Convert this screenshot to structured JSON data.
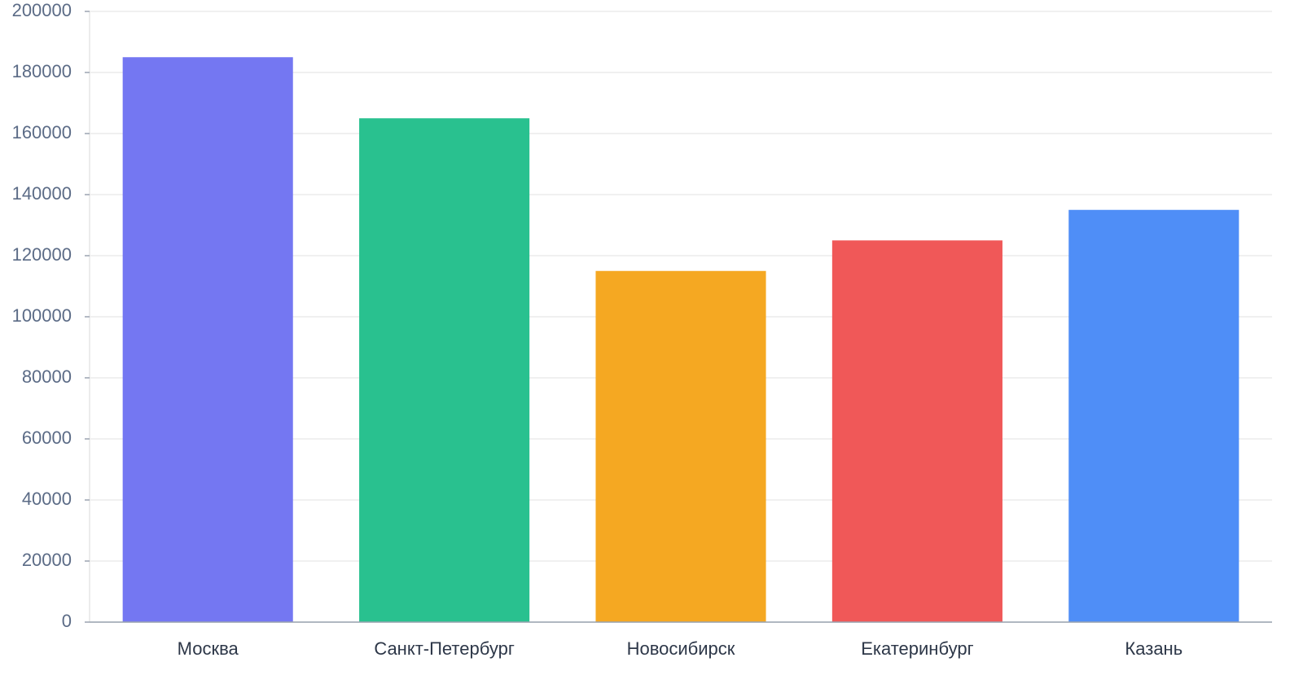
{
  "chart_data": {
    "type": "bar",
    "categories": [
      "Москва",
      "Санкт-Петербург",
      "Новосибирск",
      "Екатеринбург",
      "Казань"
    ],
    "values": [
      185000,
      165000,
      115000,
      125000,
      135000
    ],
    "colors": [
      "#7477f2",
      "#29c18f",
      "#f5a822",
      "#f05858",
      "#4f8ef7"
    ],
    "ylim": [
      0,
      200000
    ],
    "yticks": [
      0,
      20000,
      40000,
      60000,
      80000,
      100000,
      120000,
      140000,
      160000,
      180000,
      200000
    ],
    "grid": true
  }
}
